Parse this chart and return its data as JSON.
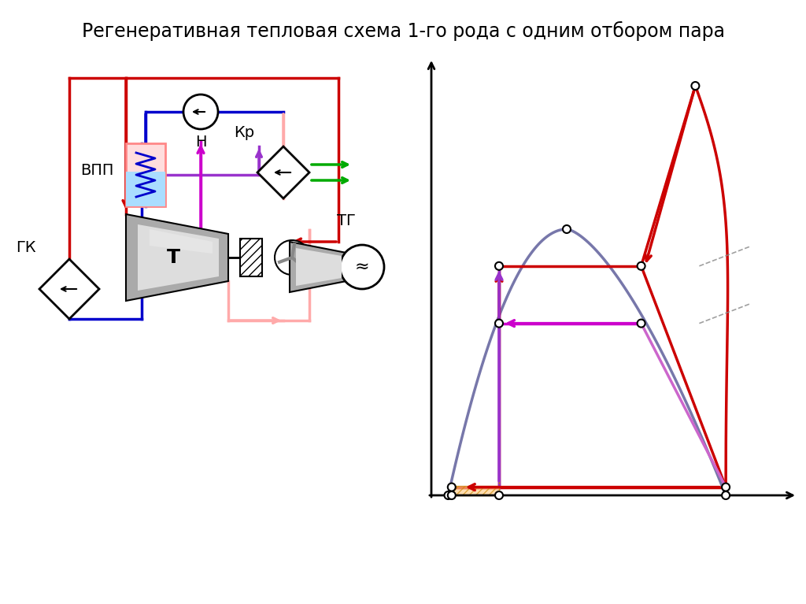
{
  "title": "Регенеративная тепловая схема 1-го рода с одним отбором пара",
  "title_fontsize": 17,
  "bg_color": "#ffffff",
  "labels": {
    "GK": "ГК",
    "VPP": "ВПП",
    "T": "Т",
    "TG": "ТГ",
    "KR": "Кр",
    "N": "Н"
  },
  "colors": {
    "red": "#cc0000",
    "blue": "#0000cc",
    "pink": "#ffaaaa",
    "purple": "#cc00cc",
    "violet": "#9933cc",
    "green": "#00aa00",
    "gray": "#888888",
    "darkgray": "#555555",
    "orange": "#ffcc88",
    "black": "#000000",
    "light_blue": "#aaddff",
    "light_red": "#ffcccc",
    "turb_gray": "#aaaaaa",
    "turb_light": "#dddddd",
    "sat_blue": "#7777aa"
  }
}
